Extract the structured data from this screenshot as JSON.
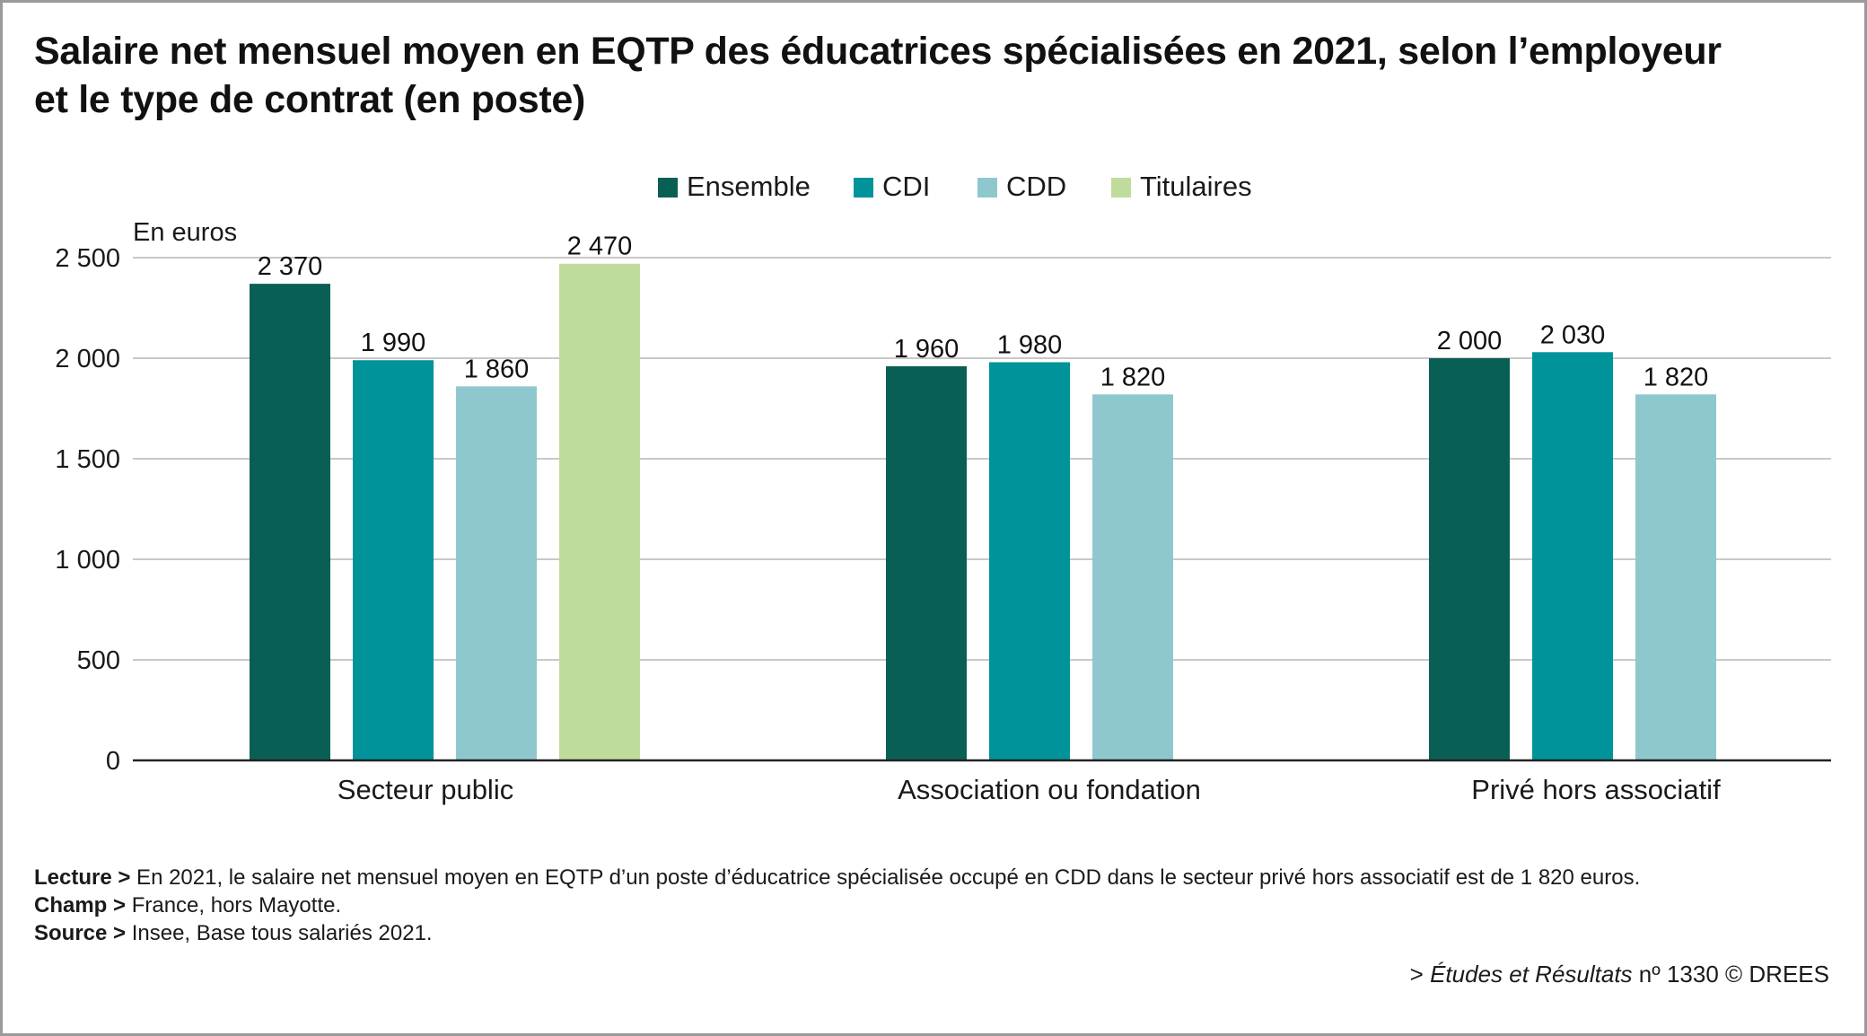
{
  "title_lines": [
    "Salaire net mensuel moyen en EQTP des éducatrices spécialisées en 2021, selon l’employeur",
    "et le type de contrat (en poste)"
  ],
  "chart_data": {
    "type": "bar",
    "unit_label": "En euros",
    "categories": [
      "Secteur public",
      "Association ou fondation",
      "Privé hors associatif"
    ],
    "series": [
      {
        "name": "Ensemble",
        "color": "#0a5f55",
        "values": [
          2370,
          1960,
          2000
        ],
        "labels": [
          "2 370",
          "1 960",
          "2 000"
        ]
      },
      {
        "name": "CDI",
        "color": "#00939a",
        "values": [
          1990,
          1980,
          2030
        ],
        "labels": [
          "1 990",
          "1 980",
          "2 030"
        ]
      },
      {
        "name": "CDD",
        "color": "#8ec8ce",
        "values": [
          1860,
          1820,
          1820
        ],
        "labels": [
          "1 860",
          "1 820",
          "1 820"
        ]
      },
      {
        "name": "Titulaires",
        "color": "#c0dc9c",
        "values": [
          2470,
          null,
          null
        ],
        "labels": [
          "2 470",
          null,
          null
        ]
      }
    ],
    "y_ticks": [
      0,
      500,
      1000,
      1500,
      2000,
      2500
    ],
    "y_tick_labels": [
      "0",
      "500",
      "1 000",
      "1 500",
      "2 000",
      "2 500"
    ],
    "ylim": [
      0,
      2500
    ],
    "grid": true,
    "legend_position": "top-center"
  },
  "notes": {
    "lecture_label": "Lecture >",
    "lecture_text": " En 2021, le salaire net mensuel moyen en EQTP d’un poste d’éducatrice spécialisée occupé en CDD dans le secteur privé hors associatif est de 1 820 euros.",
    "champ_label": "Champ >",
    "champ_text": " France, hors Mayotte.",
    "source_label": "Source >",
    "source_text": " Insee, Base tous salariés 2021."
  },
  "credit": {
    "prefix": "> ",
    "publication": "Études et Résultats",
    "number": " nº 1330 © DREES"
  }
}
